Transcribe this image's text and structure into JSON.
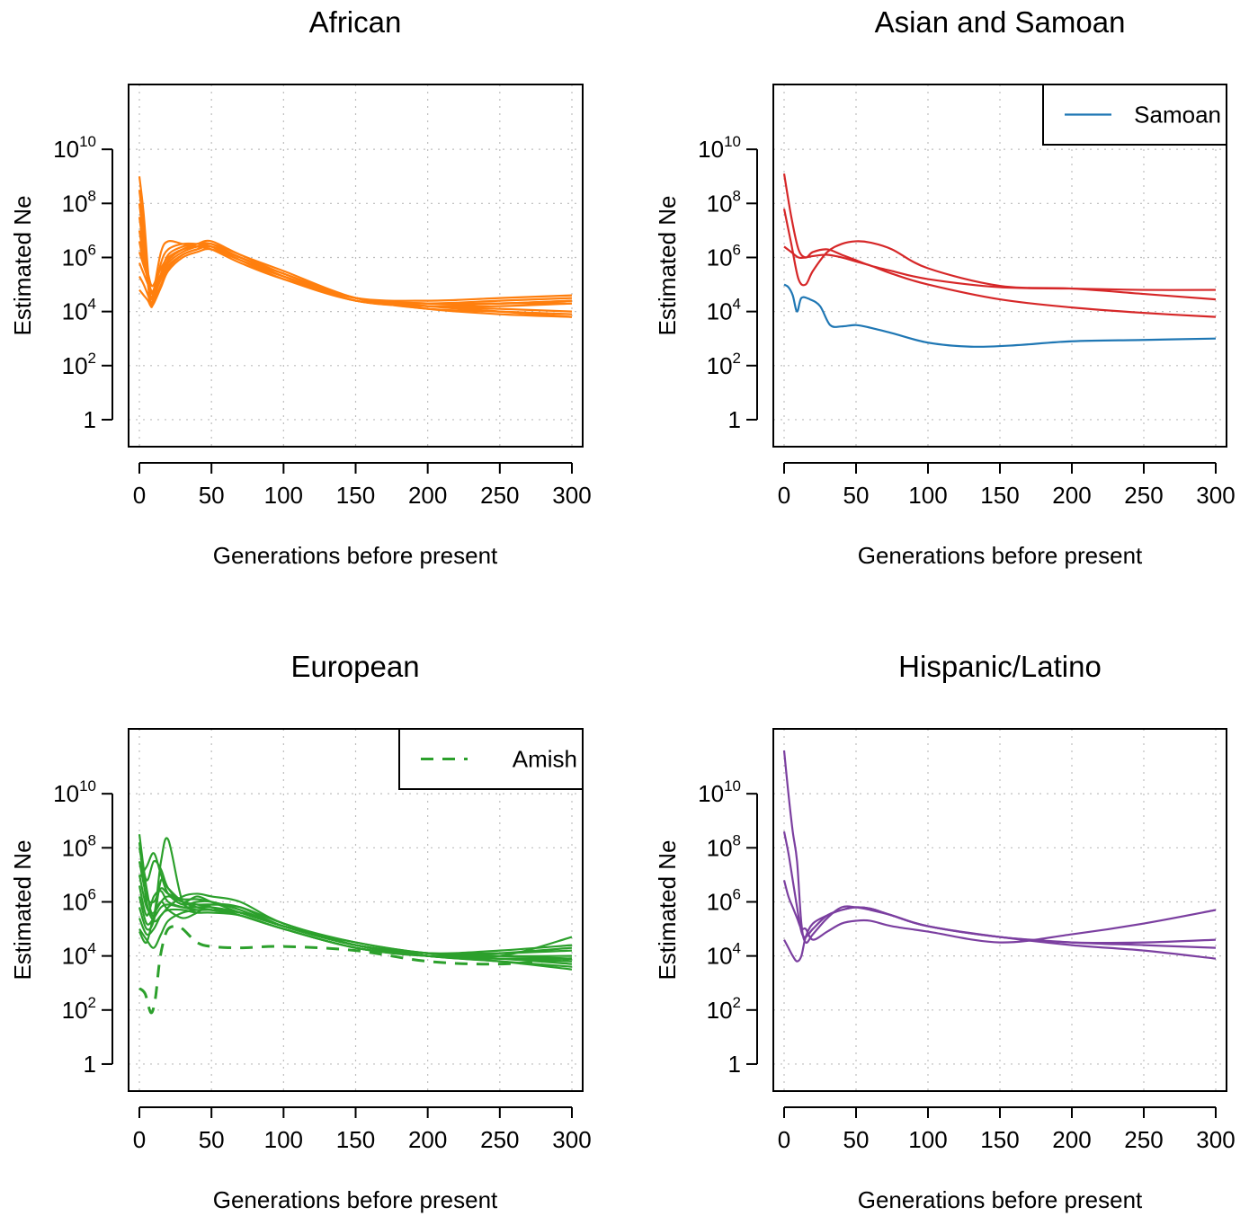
{
  "chart_data": [
    {
      "type": "line",
      "title": "African",
      "xlabel": "Generations before present",
      "ylabel": "Estimated Ne",
      "xlim": [
        0,
        300
      ],
      "ylim_log10": [
        -0.6,
        12
      ],
      "y_scale": "log10",
      "x_ticks": [
        "0",
        "50",
        "100",
        "150",
        "200",
        "250",
        "300"
      ],
      "y_ticks": [
        {
          "base": "1",
          "exp": ""
        },
        {
          "base": "10",
          "exp": "2"
        },
        {
          "base": "10",
          "exp": "4"
        },
        {
          "base": "10",
          "exp": "6"
        },
        {
          "base": "10",
          "exp": "8"
        },
        {
          "base": "10",
          "exp": "10"
        }
      ],
      "grid": true,
      "color": "#FF7F0E",
      "x": [
        0,
        3,
        6,
        8,
        10,
        15,
        20,
        30,
        40,
        50,
        70,
        100,
        150,
        200,
        250,
        300
      ],
      "series": [
        {
          "log10_values": [
            9.0,
            7.6,
            5.5,
            4.5,
            4.8,
            6.2,
            6.6,
            6.5,
            6.4,
            6.3,
            5.8,
            5.2,
            4.5,
            4.4,
            4.5,
            4.6
          ]
        },
        {
          "log10_values": [
            8.5,
            7.0,
            5.2,
            4.3,
            4.6,
            5.8,
            6.3,
            6.5,
            6.5,
            6.4,
            5.9,
            5.3,
            4.5,
            4.3,
            4.3,
            4.4
          ]
        },
        {
          "log10_values": [
            8.0,
            6.6,
            5.0,
            4.2,
            4.4,
            5.4,
            6.1,
            6.4,
            6.5,
            6.5,
            6.0,
            5.4,
            4.5,
            4.2,
            4.1,
            4.0
          ]
        },
        {
          "log10_values": [
            7.5,
            6.3,
            5.0,
            4.5,
            4.6,
            5.2,
            5.9,
            6.3,
            6.5,
            6.6,
            6.1,
            5.5,
            4.5,
            4.1,
            4.0,
            3.9
          ]
        },
        {
          "log10_values": [
            7.0,
            6.0,
            5.2,
            4.7,
            4.8,
            5.4,
            5.9,
            6.3,
            6.4,
            6.4,
            5.9,
            5.2,
            4.4,
            4.2,
            4.3,
            4.3
          ]
        },
        {
          "log10_values": [
            6.6,
            5.8,
            5.4,
            5.0,
            5.0,
            5.6,
            6.0,
            6.3,
            6.4,
            6.4,
            6.0,
            5.3,
            4.4,
            4.3,
            4.4,
            4.5
          ]
        },
        {
          "log10_values": [
            6.2,
            5.7,
            5.2,
            4.8,
            4.8,
            5.3,
            5.8,
            6.2,
            6.4,
            6.5,
            6.1,
            5.4,
            4.5,
            4.1,
            3.9,
            3.8
          ]
        },
        {
          "log10_values": [
            5.8,
            5.4,
            5.0,
            4.7,
            4.7,
            5.2,
            5.7,
            6.1,
            6.3,
            6.4,
            6.0,
            5.3,
            4.4,
            4.2,
            4.2,
            4.3
          ]
        },
        {
          "log10_values": [
            5.3,
            5.0,
            4.6,
            4.3,
            4.4,
            5.0,
            5.6,
            6.1,
            6.3,
            6.4,
            6.0,
            5.4,
            4.5,
            4.3,
            4.3,
            4.4
          ]
        },
        {
          "log10_values": [
            4.8,
            4.6,
            4.4,
            4.2,
            4.3,
            4.9,
            5.5,
            6.0,
            6.2,
            6.3,
            5.9,
            5.3,
            4.5,
            4.2,
            4.0,
            3.8
          ]
        }
      ]
    },
    {
      "type": "line",
      "title": "Asian and Samoan",
      "xlabel": "Generations before present",
      "ylabel": "Estimated Ne",
      "xlim": [
        0,
        300
      ],
      "ylim_log10": [
        -0.6,
        12
      ],
      "y_scale": "log10",
      "x_ticks": [
        "0",
        "50",
        "100",
        "150",
        "200",
        "250",
        "300"
      ],
      "y_ticks": [
        {
          "base": "1",
          "exp": ""
        },
        {
          "base": "10",
          "exp": "2"
        },
        {
          "base": "10",
          "exp": "4"
        },
        {
          "base": "10",
          "exp": "6"
        },
        {
          "base": "10",
          "exp": "8"
        },
        {
          "base": "10",
          "exp": "10"
        }
      ],
      "grid": true,
      "legend": {
        "position": "top-right",
        "label": "Samoan",
        "color": "#1F77B4",
        "dash": false
      },
      "series": [
        {
          "color": "#D62728",
          "x": [
            0,
            5,
            10,
            15,
            20,
            30,
            40,
            50,
            60,
            75,
            100,
            150,
            200,
            250,
            300
          ],
          "log10_values": [
            9.1,
            7.5,
            6.3,
            6.0,
            6.2,
            6.3,
            6.1,
            5.9,
            5.7,
            5.5,
            5.2,
            4.9,
            4.85,
            4.8,
            4.8
          ]
        },
        {
          "color": "#D62728",
          "x": [
            0,
            5,
            10,
            15,
            20,
            30,
            40,
            50,
            60,
            75,
            100,
            150,
            200,
            250,
            300
          ],
          "log10_values": [
            7.8,
            6.5,
            5.2,
            5.0,
            5.5,
            6.2,
            6.5,
            6.6,
            6.55,
            6.3,
            5.6,
            4.95,
            4.85,
            4.65,
            4.45
          ]
        },
        {
          "color": "#D62728",
          "x": [
            0,
            5,
            10,
            15,
            20,
            30,
            40,
            50,
            60,
            75,
            100,
            150,
            200,
            250,
            300
          ],
          "log10_values": [
            6.4,
            6.2,
            6.0,
            6.0,
            6.05,
            6.1,
            6.0,
            5.85,
            5.7,
            5.4,
            5.0,
            4.45,
            4.15,
            3.95,
            3.8
          ]
        },
        {
          "color": "#1F77B4",
          "x": [
            0,
            3,
            6,
            9,
            12,
            18,
            25,
            32,
            40,
            50,
            60,
            75,
            100,
            130,
            160,
            200,
            250,
            300
          ],
          "log10_values": [
            5.0,
            4.9,
            4.6,
            4.0,
            4.5,
            4.45,
            4.2,
            3.5,
            3.45,
            3.5,
            3.4,
            3.2,
            2.85,
            2.7,
            2.75,
            2.9,
            2.95,
            3.0
          ]
        }
      ]
    },
    {
      "type": "line",
      "title": "European",
      "xlabel": "Generations before present",
      "ylabel": "Estimated Ne",
      "xlim": [
        0,
        300
      ],
      "ylim_log10": [
        -0.6,
        12
      ],
      "y_scale": "log10",
      "x_ticks": [
        "0",
        "50",
        "100",
        "150",
        "200",
        "250",
        "300"
      ],
      "y_ticks": [
        {
          "base": "1",
          "exp": ""
        },
        {
          "base": "10",
          "exp": "2"
        },
        {
          "base": "10",
          "exp": "4"
        },
        {
          "base": "10",
          "exp": "6"
        },
        {
          "base": "10",
          "exp": "8"
        },
        {
          "base": "10",
          "exp": "10"
        }
      ],
      "grid": true,
      "legend": {
        "position": "top-right",
        "label": "Amish",
        "color": "#2CA02C",
        "dash": true
      },
      "color": "#2CA02C",
      "series": [
        {
          "x": [
            0,
            5,
            10,
            15,
            20,
            30,
            40,
            50,
            70,
            100,
            150,
            200,
            250,
            300
          ],
          "log10_values": [
            8.5,
            6.5,
            5.5,
            7.5,
            8.3,
            6.0,
            5.9,
            5.8,
            5.5,
            5.0,
            4.3,
            4.0,
            3.9,
            3.8
          ]
        },
        {
          "x": [
            0,
            5,
            10,
            15,
            20,
            30,
            40,
            50,
            70,
            100,
            150,
            200,
            250,
            300
          ],
          "log10_values": [
            8.0,
            6.8,
            7.5,
            7.2,
            6.5,
            6.0,
            6.2,
            6.0,
            5.6,
            5.1,
            4.4,
            4.1,
            4.1,
            4.2
          ]
        },
        {
          "x": [
            0,
            5,
            10,
            15,
            20,
            30,
            40,
            50,
            70,
            100,
            150,
            200,
            250,
            300
          ],
          "log10_values": [
            7.5,
            6.2,
            6.0,
            6.5,
            6.3,
            6.1,
            6.1,
            6.0,
            5.7,
            5.1,
            4.5,
            4.1,
            4.0,
            4.0
          ]
        },
        {
          "x": [
            0,
            5,
            10,
            15,
            20,
            30,
            40,
            50,
            70,
            100,
            150,
            200,
            250,
            300
          ],
          "log10_values": [
            7.0,
            5.8,
            5.6,
            6.0,
            6.2,
            6.0,
            5.9,
            5.9,
            5.8,
            5.2,
            4.4,
            4.0,
            3.9,
            3.9
          ]
        },
        {
          "x": [
            0,
            5,
            10,
            15,
            20,
            30,
            40,
            50,
            70,
            100,
            150,
            200,
            250,
            300
          ],
          "log10_values": [
            6.6,
            5.5,
            6.2,
            6.4,
            6.0,
            5.8,
            5.7,
            5.7,
            5.6,
            5.1,
            4.4,
            4.1,
            4.2,
            4.4
          ]
        },
        {
          "x": [
            0,
            5,
            10,
            15,
            20,
            30,
            40,
            50,
            70,
            100,
            150,
            200,
            250,
            300
          ],
          "log10_values": [
            6.2,
            5.2,
            5.4,
            5.8,
            5.9,
            5.8,
            5.8,
            5.8,
            5.6,
            5.1,
            4.4,
            4.0,
            3.8,
            3.6
          ]
        },
        {
          "x": [
            0,
            5,
            10,
            15,
            20,
            30,
            40,
            50,
            70,
            100,
            150,
            200,
            250,
            300
          ],
          "log10_values": [
            5.8,
            5.0,
            5.3,
            6.8,
            6.5,
            6.0,
            5.8,
            5.7,
            5.5,
            5.0,
            4.3,
            4.0,
            3.9,
            3.7
          ]
        },
        {
          "x": [
            0,
            5,
            10,
            15,
            20,
            30,
            40,
            50,
            70,
            100,
            150,
            200,
            250,
            300
          ],
          "log10_values": [
            5.4,
            4.8,
            5.0,
            5.5,
            5.7,
            5.7,
            5.6,
            5.6,
            5.5,
            5.0,
            4.3,
            4.0,
            4.1,
            4.3
          ]
        },
        {
          "x": [
            0,
            5,
            10,
            15,
            20,
            30,
            40,
            50,
            70,
            100,
            150,
            200,
            250,
            300
          ],
          "log10_values": [
            5.0,
            4.6,
            4.3,
            4.8,
            5.3,
            5.6,
            5.7,
            5.7,
            5.6,
            5.1,
            4.4,
            4.1,
            4.0,
            3.9
          ]
        },
        {
          "x": [
            0,
            5,
            10,
            15,
            20,
            30,
            40,
            50,
            70,
            100,
            150,
            200,
            250,
            300
          ],
          "log10_values": [
            6.9,
            7.3,
            7.8,
            7.0,
            6.3,
            5.9,
            6.0,
            6.0,
            5.7,
            5.1,
            4.4,
            4.0,
            3.8,
            3.5
          ]
        },
        {
          "x": [
            0,
            5,
            10,
            15,
            20,
            30,
            40,
            50,
            70,
            100,
            150,
            200,
            250,
            300
          ],
          "log10_values": [
            8.2,
            6.0,
            5.3,
            5.5,
            5.8,
            6.2,
            6.3,
            6.2,
            6.0,
            5.2,
            4.5,
            4.1,
            4.0,
            4.7
          ]
        },
        {
          "x": [
            0,
            5,
            10,
            15,
            20,
            30,
            40,
            50,
            70,
            100,
            150,
            200,
            250,
            300
          ],
          "log10_values": [
            4.9,
            4.5,
            5.5,
            6.0,
            5.7,
            5.4,
            5.6,
            5.9,
            5.8,
            5.1,
            4.4,
            4.0,
            3.9,
            3.9
          ]
        },
        {
          "dash": true,
          "x": [
            0,
            4,
            8,
            11,
            14,
            17,
            20,
            25,
            30,
            40,
            50,
            70,
            100,
            150,
            200,
            250,
            300
          ],
          "log10_values": [
            2.8,
            2.6,
            1.9,
            2.4,
            3.8,
            4.6,
            5.0,
            5.1,
            5.0,
            4.5,
            4.35,
            4.3,
            4.35,
            4.2,
            3.8,
            3.7,
            3.9
          ]
        }
      ]
    },
    {
      "type": "line",
      "title": "Hispanic/Latino",
      "xlabel": "Generations before present",
      "ylabel": "Estimated Ne",
      "xlim": [
        0,
        300
      ],
      "ylim_log10": [
        -0.6,
        12
      ],
      "y_scale": "log10",
      "x_ticks": [
        "0",
        "50",
        "100",
        "150",
        "200",
        "250",
        "300"
      ],
      "y_ticks": [
        {
          "base": "1",
          "exp": ""
        },
        {
          "base": "10",
          "exp": "2"
        },
        {
          "base": "10",
          "exp": "4"
        },
        {
          "base": "10",
          "exp": "6"
        },
        {
          "base": "10",
          "exp": "8"
        },
        {
          "base": "10",
          "exp": "10"
        }
      ],
      "grid": true,
      "color": "#7B3FA0",
      "series": [
        {
          "x": [
            0,
            3,
            6,
            9,
            12,
            15,
            20,
            30,
            40,
            50,
            60,
            75,
            100,
            150,
            200,
            250,
            300
          ],
          "log10_values": [
            11.6,
            10.0,
            8.6,
            7.5,
            5.2,
            4.5,
            4.8,
            5.4,
            5.8,
            5.8,
            5.7,
            5.5,
            5.1,
            4.7,
            4.5,
            4.4,
            4.3
          ]
        },
        {
          "x": [
            0,
            3,
            6,
            9,
            12,
            15,
            20,
            30,
            40,
            50,
            60,
            75,
            100,
            150,
            200,
            250,
            300
          ],
          "log10_values": [
            8.6,
            7.8,
            6.8,
            5.8,
            4.9,
            4.7,
            5.0,
            5.5,
            5.7,
            5.8,
            5.75,
            5.5,
            5.1,
            4.7,
            4.4,
            4.2,
            3.9
          ]
        },
        {
          "x": [
            0,
            3,
            6,
            9,
            12,
            15,
            20,
            30,
            40,
            50,
            60,
            75,
            100,
            150,
            200,
            250,
            300
          ],
          "log10_values": [
            6.8,
            6.2,
            5.8,
            5.4,
            5.0,
            5.0,
            4.6,
            4.9,
            5.2,
            5.3,
            5.3,
            5.1,
            4.9,
            4.5,
            4.8,
            5.2,
            5.7
          ]
        },
        {
          "x": [
            0,
            3,
            6,
            9,
            12,
            15,
            20,
            30,
            40,
            50,
            60,
            75,
            100,
            150,
            200,
            250,
            300
          ],
          "log10_values": [
            4.6,
            4.3,
            4.0,
            3.8,
            4.0,
            4.7,
            5.2,
            5.5,
            5.7,
            5.8,
            5.75,
            5.5,
            5.1,
            4.7,
            4.5,
            4.5,
            4.6
          ]
        }
      ]
    }
  ]
}
